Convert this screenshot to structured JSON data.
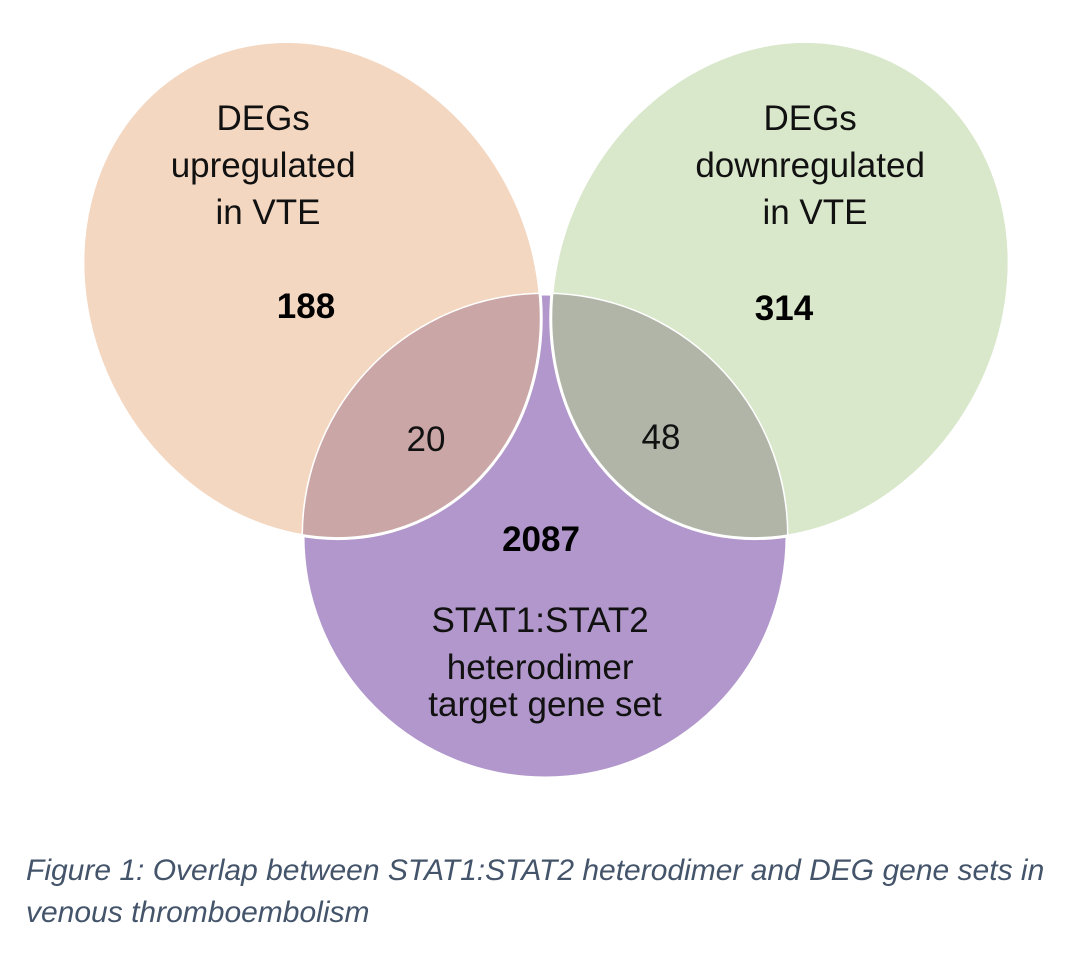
{
  "diagram": {
    "type": "venn",
    "sets": [
      {
        "id": "up",
        "label_lines": [
          "DEGs",
          "upregulated",
          "in VTE"
        ],
        "only_count": "188",
        "color": "#f4d7c1"
      },
      {
        "id": "down",
        "label_lines": [
          "DEGs",
          "downregulated",
          "in VTE"
        ],
        "only_count": "314",
        "color": "#d9e7cb"
      },
      {
        "id": "stat",
        "label_lines": [
          "STAT1:STAT2",
          "heterodimer",
          "target gene set"
        ],
        "only_count": "2087",
        "color": "#b197cb"
      }
    ],
    "overlaps": [
      {
        "sets": [
          "up",
          "stat"
        ],
        "count": "20",
        "color": "#cba6a6"
      },
      {
        "sets": [
          "down",
          "stat"
        ],
        "count": "48",
        "color": "#b0b5a8"
      }
    ],
    "outline_color": "#ffffff"
  },
  "caption": "Figure 1: Overlap between STAT1:STAT2 heterodimer and DEG gene sets in venous thromboembolism"
}
